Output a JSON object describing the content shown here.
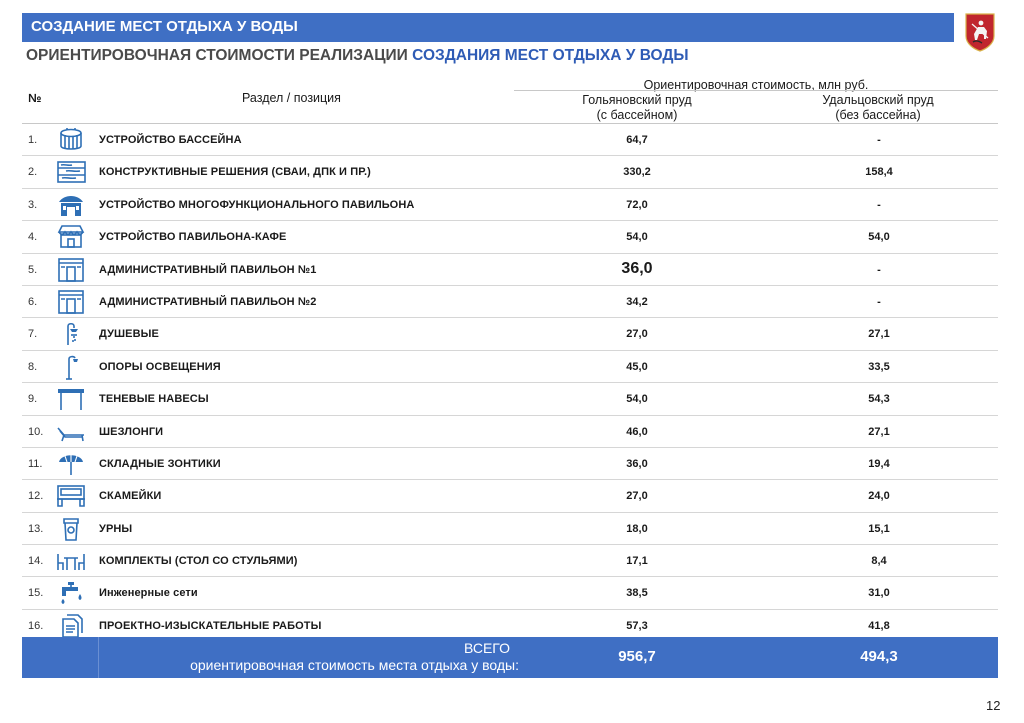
{
  "header": {
    "title": "СОЗДАНИЕ МЕСТ ОТДЫХА У ВОДЫ",
    "subtitle_prefix": "ОРИЕНТИРОВОЧНАЯ СТОИМОСТИ РЕАЛИЗАЦИИ",
    "subtitle_accent": "СОЗДАНИЯ МЕСТ ОТДЫХА У ВОДЫ"
  },
  "emblem": {
    "icon": "moscow-coat-of-arms-icon",
    "color": "#c0262e"
  },
  "colors": {
    "accent": "#3f6fc4",
    "icon": "#2e6fb5"
  },
  "table": {
    "headers": {
      "num": "№",
      "section": "Раздел / позиция",
      "cost": "Ориентировочная стоимость, млн руб.",
      "col1_line1": "Гольяновский пруд",
      "col1_line2": "(с бассейном)",
      "col2_line1": "Удальцовский пруд",
      "col2_line2": "(без бассейна)"
    },
    "rows": [
      {
        "num": "1.",
        "label": "УСТРОЙСТВО БАССЕЙНА",
        "v1": "64,7",
        "v2": "-",
        "icon": "pool-icon"
      },
      {
        "num": "2.",
        "label": "КОНСТРУКТИВНЫЕ РЕШЕНИЯ (СВАИ, ДПК И ПР.)",
        "v1": "330,2",
        "v2": "158,4",
        "icon": "deck-boards-icon"
      },
      {
        "num": "3.",
        "label": "УСТРОЙСТВО МНОГОФУНКЦИОНАЛЬНОГО ПАВИЛЬОНА",
        "v1": "72,0",
        "v2": "-",
        "icon": "pavilion-icon"
      },
      {
        "num": "4.",
        "label": "УСТРОЙСТВО ПАВИЛЬОНА-КАФЕ",
        "v1": "54,0",
        "v2": "54,0",
        "icon": "cafe-icon"
      },
      {
        "num": "5.",
        "label": "АДМИНИСТРАТИВНЫЙ ПАВИЛЬОН №1",
        "v1": "36,0",
        "v2": "-",
        "icon": "admin-pavilion-icon"
      },
      {
        "num": "6.",
        "label": "АДМИНИСТРАТИВНЫЙ ПАВИЛЬОН №2",
        "v1": "34,2",
        "v2": "-",
        "icon": "admin-pavilion-icon"
      },
      {
        "num": "7.",
        "label": "ДУШЕВЫЕ",
        "v1": "27,0",
        "v2": "27,1",
        "icon": "shower-icon"
      },
      {
        "num": "8.",
        "label": "ОПОРЫ ОСВЕЩЕНИЯ",
        "v1": "45,0",
        "v2": "33,5",
        "icon": "street-lamp-icon"
      },
      {
        "num": "9.",
        "label": "ТЕНЕВЫЕ НАВЕСЫ",
        "v1": "54,0",
        "v2": "54,3",
        "icon": "canopy-icon"
      },
      {
        "num": "10.",
        "label": "ШЕЗЛОНГИ",
        "v1": "46,0",
        "v2": "27,1",
        "icon": "sunbed-icon"
      },
      {
        "num": "11.",
        "label": "СКЛАДНЫЕ ЗОНТИКИ",
        "v1": "36,0",
        "v2": "19,4",
        "icon": "umbrella-icon"
      },
      {
        "num": "12.",
        "label": "СКАМЕЙКИ",
        "v1": "27,0",
        "v2": "24,0",
        "icon": "bench-icon"
      },
      {
        "num": "13.",
        "label": "УРНЫ",
        "v1": "18,0",
        "v2": "15,1",
        "icon": "trash-bin-icon"
      },
      {
        "num": "14.",
        "label": "КОМПЛЕКТЫ (СТОЛ СО СТУЛЬЯМИ)",
        "v1": "17,1",
        "v2": "8,4",
        "icon": "table-chairs-icon"
      },
      {
        "num": "15.",
        "label": "Инженерные сети",
        "v1": "38,5",
        "v2": "31,0",
        "icon": "water-tap-icon"
      },
      {
        "num": "16.",
        "label": "ПРОЕКТНО-ИЗЫСКАТЕЛЬНЫЕ РАБОТЫ",
        "v1": "57,3",
        "v2": "41,8",
        "icon": "documents-icon"
      }
    ],
    "total": {
      "title": "ВСЕГО",
      "subtitle": "ориентировочная стоимость места отдыха у воды:",
      "v1": "956,7",
      "v2": "494,3"
    }
  },
  "page_number": "12"
}
